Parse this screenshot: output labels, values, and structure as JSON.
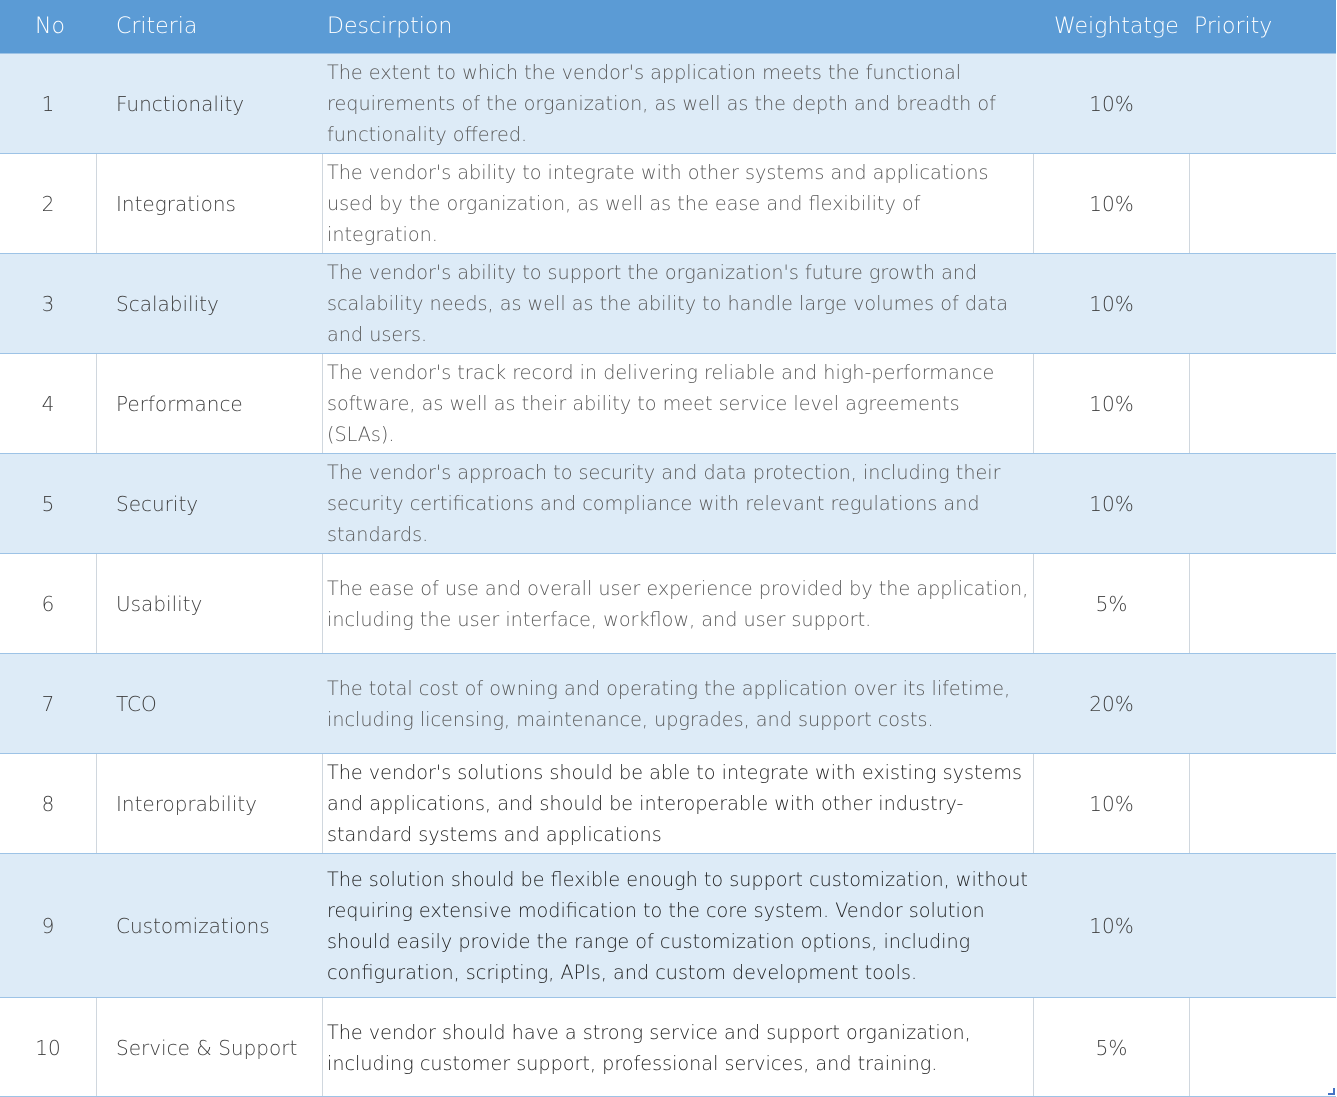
{
  "header": {
    "no": "No",
    "criteria": "Criteria",
    "description": "Descirption",
    "weightage": "Weightatge",
    "priority": "Priority"
  },
  "rows": [
    {
      "no": "1",
      "criteria": "Functionality",
      "description": "The extent to which the vendor's application meets the functional requirements of the organization, as well as the depth and breadth of functionality offered.",
      "weightage": "10%",
      "priority": ""
    },
    {
      "no": "2",
      "criteria": "Integrations",
      "description": "The vendor's ability to integrate with other systems and applications used by the organization, as well as the ease and flexibility of integration.",
      "weightage": "10%",
      "priority": ""
    },
    {
      "no": "3",
      "criteria": "Scalability",
      "description": "The vendor's ability to support the organization's future growth and scalability needs, as well as the ability to handle large volumes of data and users.",
      "weightage": "10%",
      "priority": ""
    },
    {
      "no": "4",
      "criteria": "Performance",
      "description": "The vendor's track record in delivering reliable and high-performance software, as well as their ability to meet service level agreements (SLAs).",
      "weightage": "10%",
      "priority": ""
    },
    {
      "no": "5",
      "criteria": "Security",
      "description": "The vendor's approach to security and data protection, including their security certifications and compliance with relevant regulations and standards.",
      "weightage": "10%",
      "priority": ""
    },
    {
      "no": "6",
      "criteria": "Usability",
      "description": "The ease of use and overall user experience provided by the application, including the user interface, workflow, and user support.",
      "weightage": "5%",
      "priority": ""
    },
    {
      "no": "7",
      "criteria": "TCO",
      "description": "The total cost of owning and operating the application over its lifetime, including licensing, maintenance, upgrades, and support costs.",
      "weightage": "20%",
      "priority": ""
    },
    {
      "no": "8",
      "criteria": "Interoprability",
      "description": "The vendor's solutions should be able to integrate with existing systems and applications, and should be interoperable with other industry-standard systems and applications",
      "weightage": "10%",
      "priority": ""
    },
    {
      "no": "9",
      "criteria": "Customizations",
      "description": "The solution should be flexible enough to support customization, without requiring extensive modification to the core system. Vendor solution should easily provide the range of customization options, including configuration, scripting, APIs, and custom development tools.",
      "weightage": "10%",
      "priority": ""
    },
    {
      "no": "10",
      "criteria": "Service & Support",
      "description": "The vendor should have a strong service and support organization, including customer support, professional services, and training.",
      "weightage": "5%",
      "priority": ""
    }
  ],
  "colors": {
    "header_bg": "#5b9bd5",
    "band_bg": "#ddebf7",
    "plain_bg": "#ffffff",
    "border": "#9dc3e6"
  }
}
